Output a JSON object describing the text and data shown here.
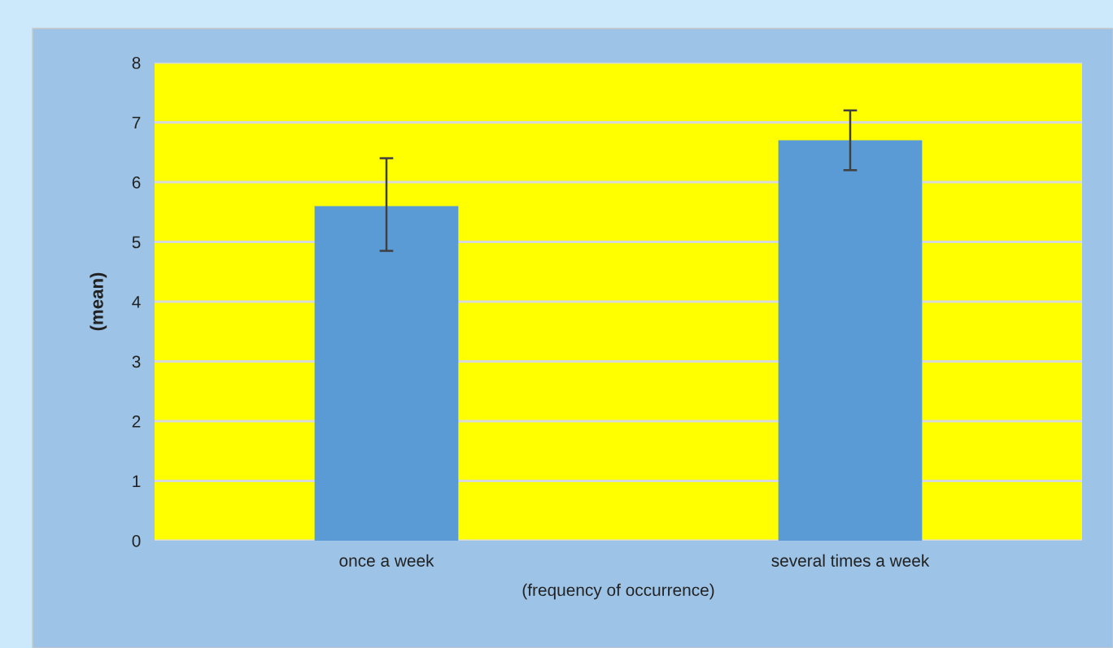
{
  "chart_data": {
    "type": "bar",
    "xlabel": "(frequency of occurrence)",
    "ylabel": "(mean)",
    "categories": [
      "once a week",
      "several times a week"
    ],
    "values": [
      5.6,
      6.7
    ],
    "errors": [
      [
        4.85,
        6.4
      ],
      [
        6.2,
        7.2
      ]
    ],
    "color": "#5b9bd5",
    "ylim": [
      0,
      8
    ],
    "yticks": [
      0,
      1,
      2,
      3,
      4,
      5,
      6,
      7,
      8
    ],
    "grid": "y"
  }
}
